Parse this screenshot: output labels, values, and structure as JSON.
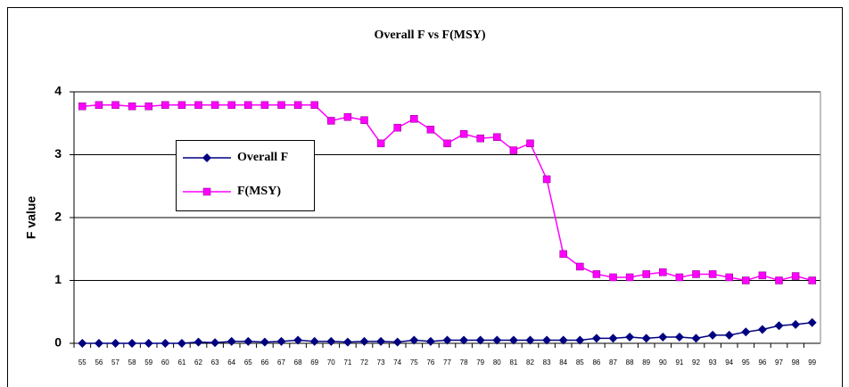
{
  "chart_data": {
    "type": "line",
    "title": "Overall F vs F(MSY)",
    "y_label": "F value",
    "categories": [
      "55",
      "56",
      "57",
      "58",
      "59",
      "60",
      "61",
      "62",
      "63",
      "64",
      "65",
      "66",
      "67",
      "68",
      "69",
      "70",
      "71",
      "72",
      "73",
      "74",
      "75",
      "76",
      "77",
      "78",
      "79",
      "80",
      "81",
      "82",
      "83",
      "84",
      "85",
      "86",
      "87",
      "88",
      "89",
      "90",
      "91",
      "92",
      "93",
      "94",
      "95",
      "96",
      "97",
      "98",
      "99"
    ],
    "series": [
      {
        "name": "Overall F",
        "color": "#000080",
        "marker": "diamond",
        "values": [
          0,
          0,
          0,
          0,
          0,
          0,
          0,
          0.02,
          0.01,
          0.03,
          0.03,
          0.02,
          0.03,
          0.05,
          0.03,
          0.03,
          0.02,
          0.03,
          0.03,
          0.02,
          0.05,
          0.03,
          0.05,
          0.05,
          0.05,
          0.05,
          0.05,
          0.05,
          0.05,
          0.05,
          0.05,
          0.08,
          0.08,
          0.1,
          0.08,
          0.1,
          0.1,
          0.08,
          0.13,
          0.13,
          0.18,
          0.22,
          0.28,
          0.3,
          0.33
        ]
      },
      {
        "name": "F(MSY)",
        "color": "#ff00ff",
        "marker": "square",
        "values": [
          3.77,
          3.79,
          3.79,
          3.77,
          3.77,
          3.79,
          3.79,
          3.79,
          3.79,
          3.79,
          3.79,
          3.79,
          3.79,
          3.79,
          3.79,
          3.54,
          3.6,
          3.55,
          3.18,
          3.43,
          3.57,
          3.4,
          3.18,
          3.33,
          3.26,
          3.28,
          3.07,
          3.18,
          2.61,
          1.42,
          1.22,
          1.1,
          1.05,
          1.05,
          1.1,
          1.13,
          1.05,
          1.1,
          1.1,
          1.05,
          1.0,
          1.08,
          1.0,
          1.07,
          1.0
        ]
      }
    ],
    "ylim": [
      0,
      4
    ],
    "yticks": [
      0,
      1,
      2,
      3,
      4
    ],
    "grid": true
  }
}
